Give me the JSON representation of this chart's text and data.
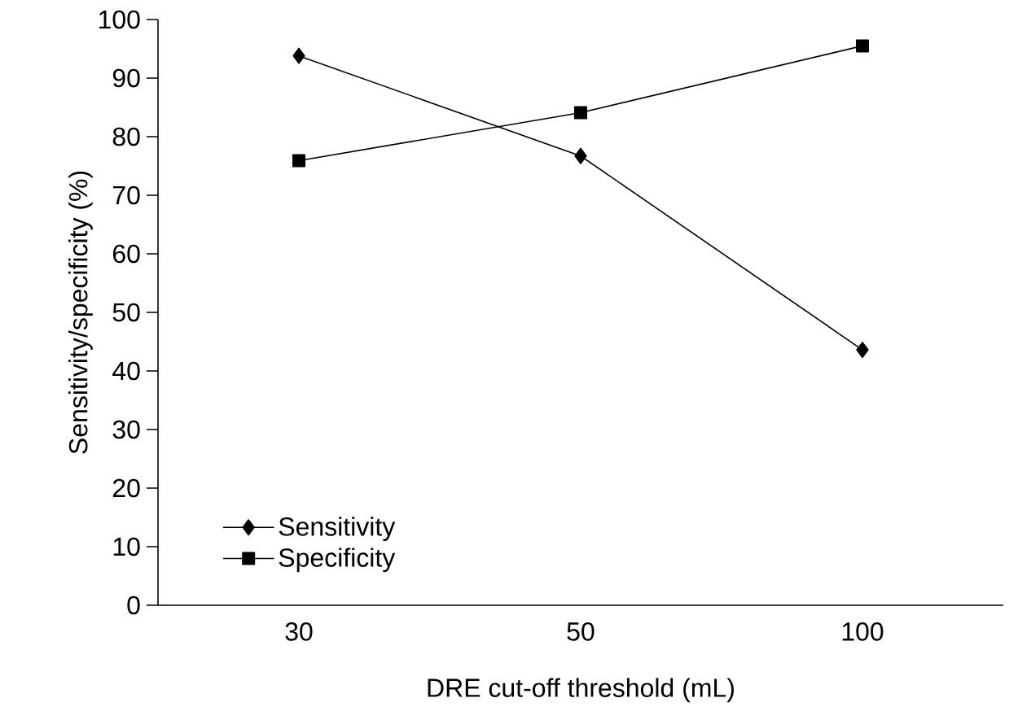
{
  "chart_data": {
    "type": "line",
    "xlabel": "DRE cut-off threshold (mL)",
    "ylabel": "Sensitivity/specificity (%)",
    "categories": [
      "30",
      "50",
      "100"
    ],
    "series": [
      {
        "name": "Sensitivity",
        "color": "#000000",
        "marker": "diamond",
        "values": [
          93.8,
          76.7,
          43.6
        ]
      },
      {
        "name": "Specificity",
        "color": "#000000",
        "marker": "square",
        "values": [
          75.9,
          84.1,
          95.5
        ]
      }
    ],
    "ylim": [
      0,
      100
    ],
    "yticks": [
      0,
      10,
      20,
      30,
      40,
      50,
      60,
      70,
      80,
      90,
      100
    ],
    "grid": false,
    "legend": "bottom left",
    "line_style": "solid"
  }
}
